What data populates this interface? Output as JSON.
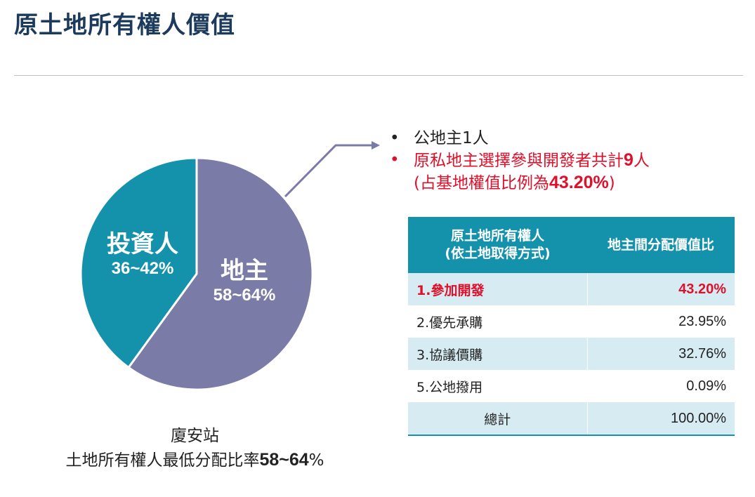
{
  "title": "原土地所有權人價值",
  "chart_data": {
    "type": "pie",
    "slices": [
      {
        "label": "地主",
        "range": "58~64%",
        "value": 60,
        "color": "#7b7ba8"
      },
      {
        "label": "投資人",
        "range": "36~42%",
        "value": 40,
        "color": "#1592ab"
      }
    ]
  },
  "caption": {
    "station": "廈安站",
    "rate_text": "土地所有權人最低分配比率",
    "rate_value": "58~64",
    "rate_unit": "%"
  },
  "bullets": {
    "dot": "•",
    "line1": "公地主1人",
    "line2_pre": "原私地主選擇參與開發者共計",
    "line2_num": "9",
    "line2_post": "人",
    "line3_pre": "(占基地權值比例為",
    "line3_num": "43.20%",
    "line3_post": ")"
  },
  "table": {
    "header_col1_line1": "原土地所有權人",
    "header_col1_line2": "(依土地取得方式)",
    "header_col2": "地主間分配價值比",
    "rows": [
      {
        "method": "1.參加開發",
        "ratio": "43.20%"
      },
      {
        "method": "2.優先承購",
        "ratio": "23.95%"
      },
      {
        "method": "3.協議價購",
        "ratio": "32.76%"
      },
      {
        "method": "5.公地撥用",
        "ratio": "0.09%"
      },
      {
        "method": "總計",
        "ratio": "100.00%"
      }
    ]
  },
  "colors": {
    "accent": "#1592ab",
    "owner": "#7b7ba8",
    "highlight": "#e0102b",
    "title": "#1b3a5c"
  }
}
